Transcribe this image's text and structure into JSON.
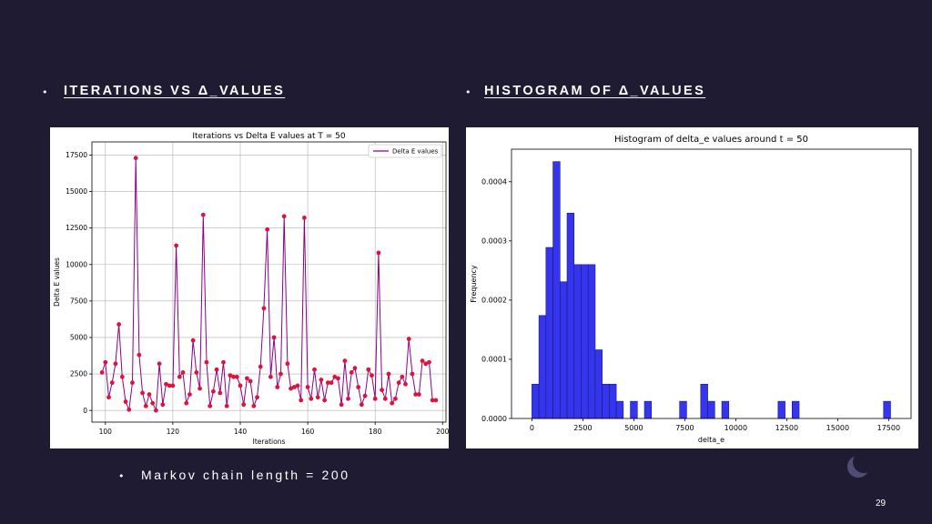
{
  "slide": {
    "left_heading": "ITERATIONS VS Δ_VALUES",
    "right_heading": "HISTOGRAM OF Δ_VALUES",
    "bullet_glyph": "•",
    "note": "Markov chain length = 200",
    "page_number": "29",
    "colors": {
      "background": "#1e1b33",
      "text": "#ffffff"
    }
  },
  "chart_data": [
    {
      "type": "line",
      "title": "Iterations vs Delta E values at T = 50",
      "xlabel": "Iterations",
      "ylabel": "Delta E values",
      "xlim": [
        96,
        201
      ],
      "ylim": [
        -800,
        18400
      ],
      "xticks": [
        100,
        120,
        140,
        160,
        180,
        200
      ],
      "yticks": [
        0,
        2500,
        5000,
        7500,
        10000,
        12500,
        15000,
        17500
      ],
      "grid": true,
      "legend_position": "top-right",
      "line_color": "#8b008b",
      "marker_color": "#dc143c",
      "series": [
        {
          "name": "Delta E values",
          "x": [
            99,
            100,
            101,
            102,
            103,
            104,
            105,
            106,
            107,
            108,
            109,
            110,
            111,
            112,
            113,
            114,
            115,
            116,
            117,
            118,
            119,
            120,
            121,
            122,
            123,
            124,
            125,
            126,
            127,
            128,
            129,
            130,
            131,
            132,
            133,
            134,
            135,
            136,
            137,
            138,
            139,
            140,
            141,
            142,
            143,
            144,
            145,
            146,
            147,
            148,
            149,
            150,
            151,
            152,
            153,
            154,
            155,
            156,
            157,
            158,
            159,
            160,
            161,
            162,
            163,
            164,
            165,
            166,
            167,
            168,
            169,
            170,
            171,
            172,
            173,
            174,
            175,
            176,
            177,
            178,
            179,
            180,
            181,
            182,
            183,
            184,
            185,
            186,
            187,
            188,
            189,
            190,
            191,
            192,
            193,
            194,
            195,
            196,
            197,
            198
          ],
          "y": [
            2600,
            3300,
            900,
            1900,
            3200,
            5900,
            2300,
            600,
            50,
            1900,
            17300,
            3800,
            1200,
            300,
            1100,
            500,
            0,
            3200,
            400,
            1800,
            1700,
            1700,
            11300,
            2300,
            2600,
            500,
            1100,
            4800,
            2600,
            1500,
            13400,
            3300,
            300,
            1300,
            2800,
            1200,
            3300,
            300,
            2400,
            2300,
            2300,
            1700,
            400,
            2200,
            2000,
            300,
            900,
            3000,
            7000,
            12400,
            2300,
            5000,
            1600,
            2500,
            13300,
            3200,
            1500,
            1600,
            1700,
            700,
            13200,
            1600,
            800,
            2800,
            900,
            2100,
            700,
            1900,
            1900,
            2300,
            2200,
            400,
            3400,
            800,
            2600,
            2900,
            1600,
            400,
            1000,
            2800,
            2400,
            800,
            10800,
            1400,
            800,
            2500,
            500,
            800,
            1900,
            2300,
            1800,
            4900,
            2500,
            1100,
            1100,
            3400,
            3200,
            3300,
            700,
            700
          ]
        }
      ]
    },
    {
      "type": "bar",
      "title": "Histogram of delta_e values around t = 50",
      "xlabel": "delta_e",
      "ylabel": "Frequency",
      "xlim": [
        -1000,
        18600
      ],
      "ylim": [
        0,
        0.000455
      ],
      "xticks": [
        0,
        2500,
        5000,
        7500,
        10000,
        12500,
        15000,
        17500
      ],
      "xtick_labels": [
        "0",
        "2500",
        "5000",
        "7500",
        "10000",
        "12500",
        "15000",
        "17500"
      ],
      "yticks": [
        0,
        0.0001,
        0.0002,
        0.0003,
        0.0004
      ],
      "ytick_labels": [
        "0.0000",
        "0.0001",
        "0.0002",
        "0.0003",
        "0.0004"
      ],
      "grid": false,
      "bar_color": "#3535ee",
      "bin_width": 345,
      "bin_starts": [
        0,
        345,
        690,
        1035,
        1380,
        1725,
        2070,
        2415,
        2760,
        3105,
        3450,
        3795,
        4140,
        4485,
        4830,
        5175,
        5520,
        5865,
        6210,
        6555,
        6900,
        7245,
        7590,
        7935,
        8280,
        8625,
        8970,
        9315,
        12075,
        12765,
        17250
      ],
      "values": [
        5.8e-05,
        0.000174,
        0.000289,
        0.000434,
        0.000231,
        0.000347,
        0.00026,
        0.00026,
        0.00026,
        0.000116,
        5.8e-05,
        5.8e-05,
        2.9e-05,
        0,
        2.9e-05,
        0,
        2.9e-05,
        0,
        0,
        0,
        0,
        2.9e-05,
        0,
        0,
        5.8e-05,
        2.9e-05,
        0,
        2.9e-05,
        2.9e-05,
        2.9e-05,
        2.9e-05
      ]
    }
  ]
}
